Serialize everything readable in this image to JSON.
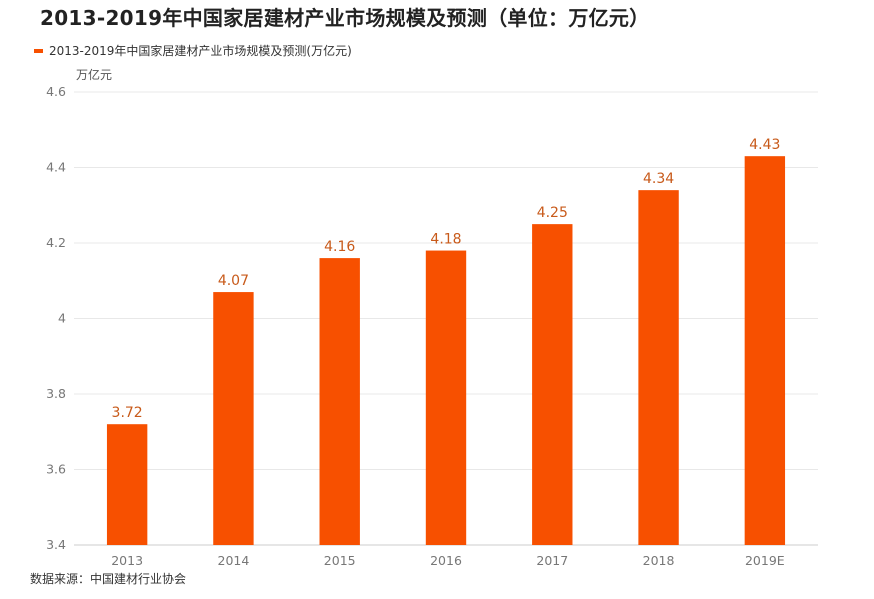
{
  "title": "2013-2019年中国家居建材产业市场规模及预测（单位：万亿元）",
  "source": "数据来源：中国建材行业协会",
  "colors": {
    "bar": "#f75000",
    "grid": "#e8e8e8",
    "axis": "#cccccc",
    "label": "#c85a1a"
  },
  "chart_data": {
    "type": "bar",
    "title": "2013-2019年中国家居建材产业市场规模及预测（单位：万亿元）",
    "ylabel": "万亿元",
    "xlabel": "",
    "categories": [
      "2013",
      "2014",
      "2015",
      "2016",
      "2017",
      "2018",
      "2019E"
    ],
    "series": [
      {
        "name": "2013-2019年中国家居建材产业市场规模及预测(万亿元)",
        "values": [
          3.72,
          4.07,
          4.16,
          4.18,
          4.25,
          4.34,
          4.43
        ]
      }
    ],
    "ylim": [
      3.4,
      4.6
    ],
    "yticks": [
      3.4,
      3.6,
      3.8,
      4,
      4.2,
      4.4,
      4.6
    ],
    "ytick_labels": [
      "3.4",
      "3.6",
      "3.8",
      "4",
      "4.2",
      "4.4",
      "4.6"
    ],
    "data_labels": [
      "3.72",
      "4.07",
      "4.16",
      "4.18",
      "4.25",
      "4.34",
      "4.43"
    ],
    "grid": true,
    "legend": "top-left"
  }
}
